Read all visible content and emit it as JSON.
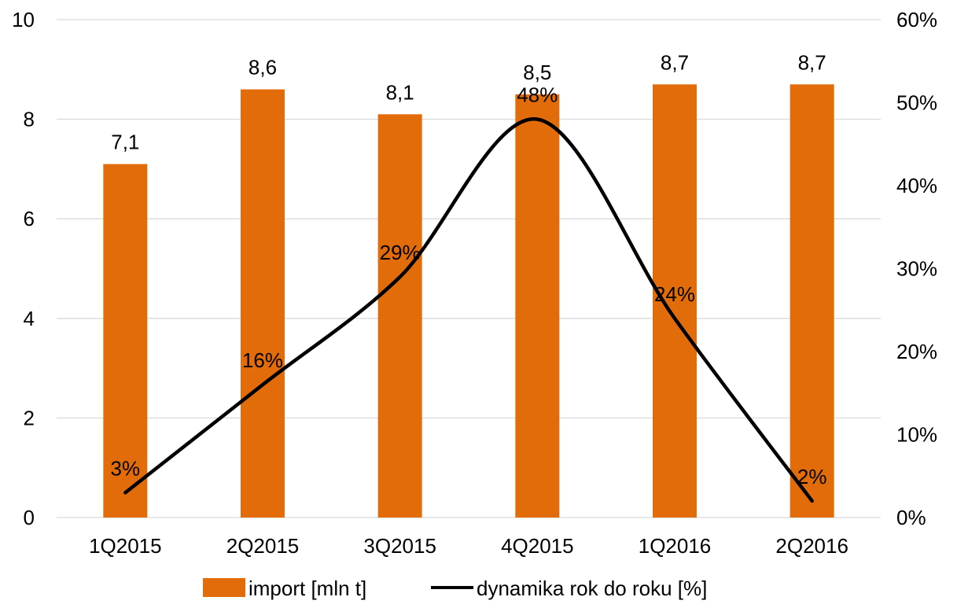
{
  "chart_data": {
    "type": "bar",
    "categories": [
      "1Q2015",
      "2Q2015",
      "3Q2015",
      "4Q2015",
      "1Q2016",
      "2Q2016"
    ],
    "series": [
      {
        "name": "import [mln t]",
        "type": "bar",
        "axis": "left",
        "values": [
          7.1,
          8.6,
          8.1,
          8.5,
          8.7,
          8.7
        ],
        "labels": [
          "7,1",
          "8,6",
          "8,1",
          "8,5",
          "8,7",
          "8,7"
        ],
        "color": "#E36C0A"
      },
      {
        "name": "dynamika rok do roku [%]",
        "type": "line",
        "axis": "right",
        "smooth": true,
        "values": [
          3,
          16,
          29,
          48,
          24,
          2
        ],
        "labels": [
          "3%",
          "16%",
          "29%",
          "48%",
          "24%",
          "2%"
        ],
        "color": "#000000"
      }
    ],
    "y_left": {
      "min": 0,
      "max": 10,
      "ticks": [
        "0",
        "2",
        "4",
        "6",
        "8",
        "10"
      ]
    },
    "y_right": {
      "min": 0,
      "max": 60,
      "ticks": [
        "0%",
        "10%",
        "20%",
        "30%",
        "40%",
        "50%",
        "60%"
      ]
    },
    "grid": true,
    "legend": "bottom"
  }
}
